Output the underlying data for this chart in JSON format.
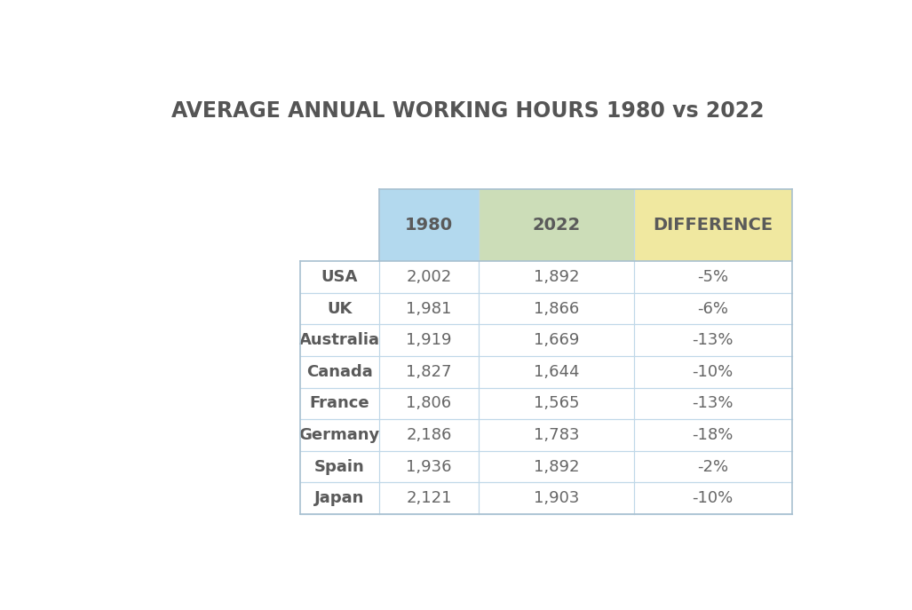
{
  "title": "AVERAGE ANNUAL WORKING HOURS 1980 vs 2022",
  "title_fontsize": 17,
  "title_color": "#555555",
  "background_color": "#ffffff",
  "countries": [
    "USA",
    "UK",
    "Australia",
    "Canada",
    "France",
    "Germany",
    "Spain",
    "Japan"
  ],
  "hours_1980": [
    "2,002",
    "1,981",
    "1,919",
    "1,827",
    "1,806",
    "2,186",
    "1,936",
    "2,121"
  ],
  "hours_2022": [
    "1,892",
    "1,866",
    "1,669",
    "1,644",
    "1,565",
    "1,783",
    "1,892",
    "1,903"
  ],
  "differences": [
    "-5%",
    "-6%",
    "-13%",
    "-10%",
    "-13%",
    "-18%",
    "-2%",
    "-10%"
  ],
  "col_headers": [
    "1980",
    "2022",
    "DIFFERENCE"
  ],
  "header_bg_1980": "#b3d9ee",
  "header_bg_2022": "#ccddb8",
  "header_bg_diff": "#f0e8a0",
  "cell_text_color": "#666666",
  "header_text_color": "#5a5a5a",
  "country_text_color": "#5a5a5a",
  "grid_color": "#c0d8e8",
  "table_border_color": "#a8c0d0",
  "data_fontsize": 13,
  "header_fontsize": 14,
  "country_fontsize": 13
}
